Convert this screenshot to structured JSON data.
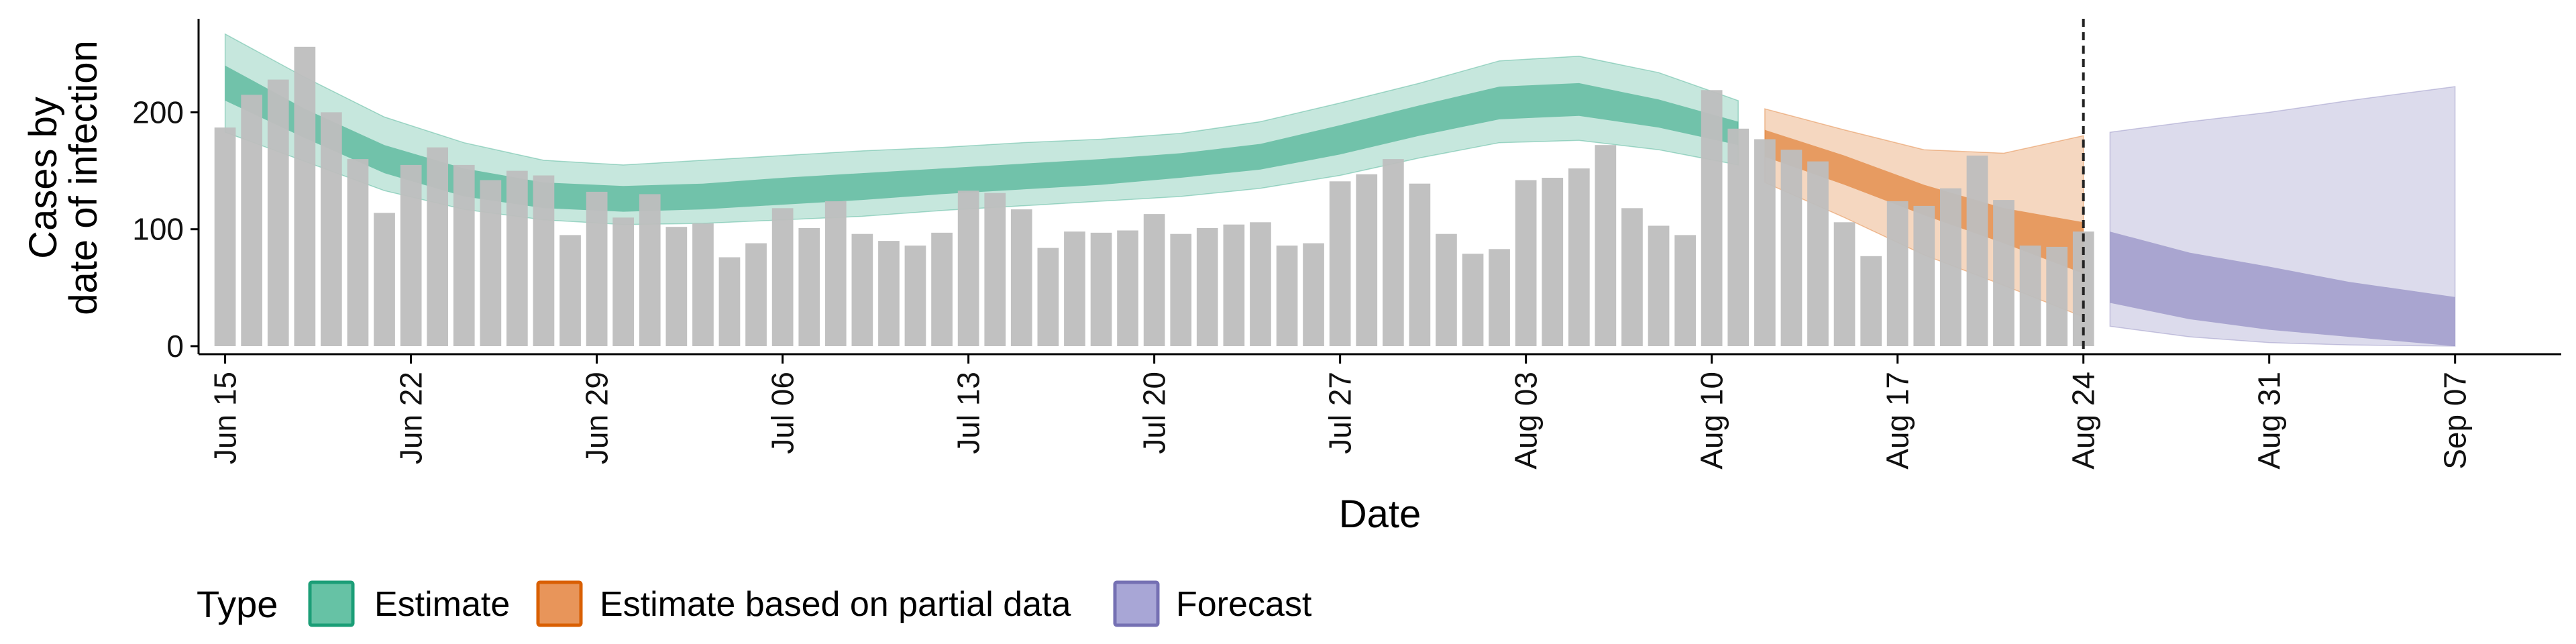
{
  "chart_data": {
    "type": "bar",
    "xlabel": "Date",
    "ylabel_lines": [
      "Cases by",
      "date of infection"
    ],
    "ylim": [
      0,
      280
    ],
    "yticks": [
      0,
      100,
      200
    ],
    "x_range": [
      "2020-06-14",
      "2020-09-11"
    ],
    "x_ticks": [
      {
        "date": "2020-06-15",
        "label": "Jun 15"
      },
      {
        "date": "2020-06-22",
        "label": "Jun 22"
      },
      {
        "date": "2020-06-29",
        "label": "Jun 29"
      },
      {
        "date": "2020-07-06",
        "label": "Jul 06"
      },
      {
        "date": "2020-07-13",
        "label": "Jul 13"
      },
      {
        "date": "2020-07-20",
        "label": "Jul 20"
      },
      {
        "date": "2020-07-27",
        "label": "Jul 27"
      },
      {
        "date": "2020-08-03",
        "label": "Aug 03"
      },
      {
        "date": "2020-08-10",
        "label": "Aug 10"
      },
      {
        "date": "2020-08-17",
        "label": "Aug 17"
      },
      {
        "date": "2020-08-24",
        "label": "Aug 24"
      },
      {
        "date": "2020-08-31",
        "label": "Aug 31"
      },
      {
        "date": "2020-09-07",
        "label": "Sep 07"
      }
    ],
    "reported_cases": {
      "start_date": "2020-06-15",
      "values": [
        187,
        215,
        228,
        256,
        200,
        160,
        114,
        155,
        170,
        155,
        142,
        150,
        146,
        95,
        132,
        110,
        130,
        102,
        105,
        76,
        88,
        118,
        101,
        124,
        96,
        90,
        86,
        97,
        133,
        131,
        117,
        84,
        98,
        97,
        99,
        113,
        96,
        101,
        104,
        106,
        86,
        88,
        141,
        147,
        160,
        139,
        96,
        79,
        83,
        142,
        144,
        152,
        172,
        118,
        103,
        95,
        219,
        186,
        177,
        168,
        158,
        106,
        77,
        124,
        120,
        135,
        163,
        125,
        86,
        85,
        98
      ]
    },
    "forecast_marker_date": "2020-08-24",
    "legend": {
      "title": "Type",
      "items": [
        {
          "label": "Estimate",
          "fill": "#66C2A5",
          "border": "#1B9E77"
        },
        {
          "label": "Estimate based on partial data",
          "fill": "#E8955A",
          "border": "#D95F02"
        },
        {
          "label": "Forecast",
          "fill": "#A8A6D6",
          "border": "#7570B3"
        }
      ],
      "position": "bottom"
    },
    "colors": {
      "bars": "#BEBEBE",
      "estimate": "#1B9E77",
      "partial": "#D95F02",
      "forecast": "#7570B3",
      "marker": "#222222"
    },
    "bands": [
      {
        "type": "Estimate",
        "dates": [
          "2020-06-15",
          "2020-06-18",
          "2020-06-21",
          "2020-06-24",
          "2020-06-27",
          "2020-06-30",
          "2020-07-03",
          "2020-07-06",
          "2020-07-09",
          "2020-07-12",
          "2020-07-15",
          "2020-07-18",
          "2020-07-21",
          "2020-07-24",
          "2020-07-27",
          "2020-07-30",
          "2020-08-02",
          "2020-08-05",
          "2020-08-08",
          "2020-08-11"
        ],
        "outer_low": [
          183,
          158,
          133,
          117,
          108,
          104,
          105,
          108,
          111,
          116,
          120,
          124,
          128,
          135,
          146,
          161,
          174,
          176,
          168,
          155
        ],
        "outer_high": [
          267,
          230,
          196,
          174,
          159,
          155,
          159,
          163,
          167,
          170,
          174,
          177,
          182,
          192,
          208,
          225,
          244,
          248,
          234,
          210
        ],
        "inner_low": [
          210,
          178,
          148,
          128,
          118,
          115,
          117,
          121,
          125,
          130,
          134,
          138,
          144,
          151,
          164,
          180,
          194,
          197,
          187,
          172
        ],
        "inner_high": [
          240,
          203,
          172,
          152,
          140,
          137,
          139,
          144,
          148,
          152,
          156,
          160,
          165,
          173,
          189,
          206,
          222,
          225,
          211,
          192
        ]
      },
      {
        "type": "Estimate based on partial data",
        "dates": [
          "2020-08-12",
          "2020-08-15",
          "2020-08-18",
          "2020-08-21",
          "2020-08-24"
        ],
        "outer_low": [
          140,
          110,
          78,
          52,
          25
        ],
        "outer_high": [
          203,
          185,
          168,
          165,
          180
        ],
        "inner_low": [
          162,
          138,
          112,
          88,
          62
        ],
        "inner_high": [
          185,
          163,
          138,
          118,
          106
        ]
      },
      {
        "type": "Forecast",
        "dates": [
          "2020-08-25",
          "2020-08-28",
          "2020-08-31",
          "2020-09-03",
          "2020-09-07"
        ],
        "outer_low": [
          17,
          8,
          3,
          1,
          0
        ],
        "outer_high": [
          183,
          192,
          200,
          210,
          222
        ],
        "inner_low": [
          37,
          23,
          14,
          8,
          0
        ],
        "inner_high": [
          98,
          80,
          68,
          55,
          42
        ]
      }
    ]
  }
}
